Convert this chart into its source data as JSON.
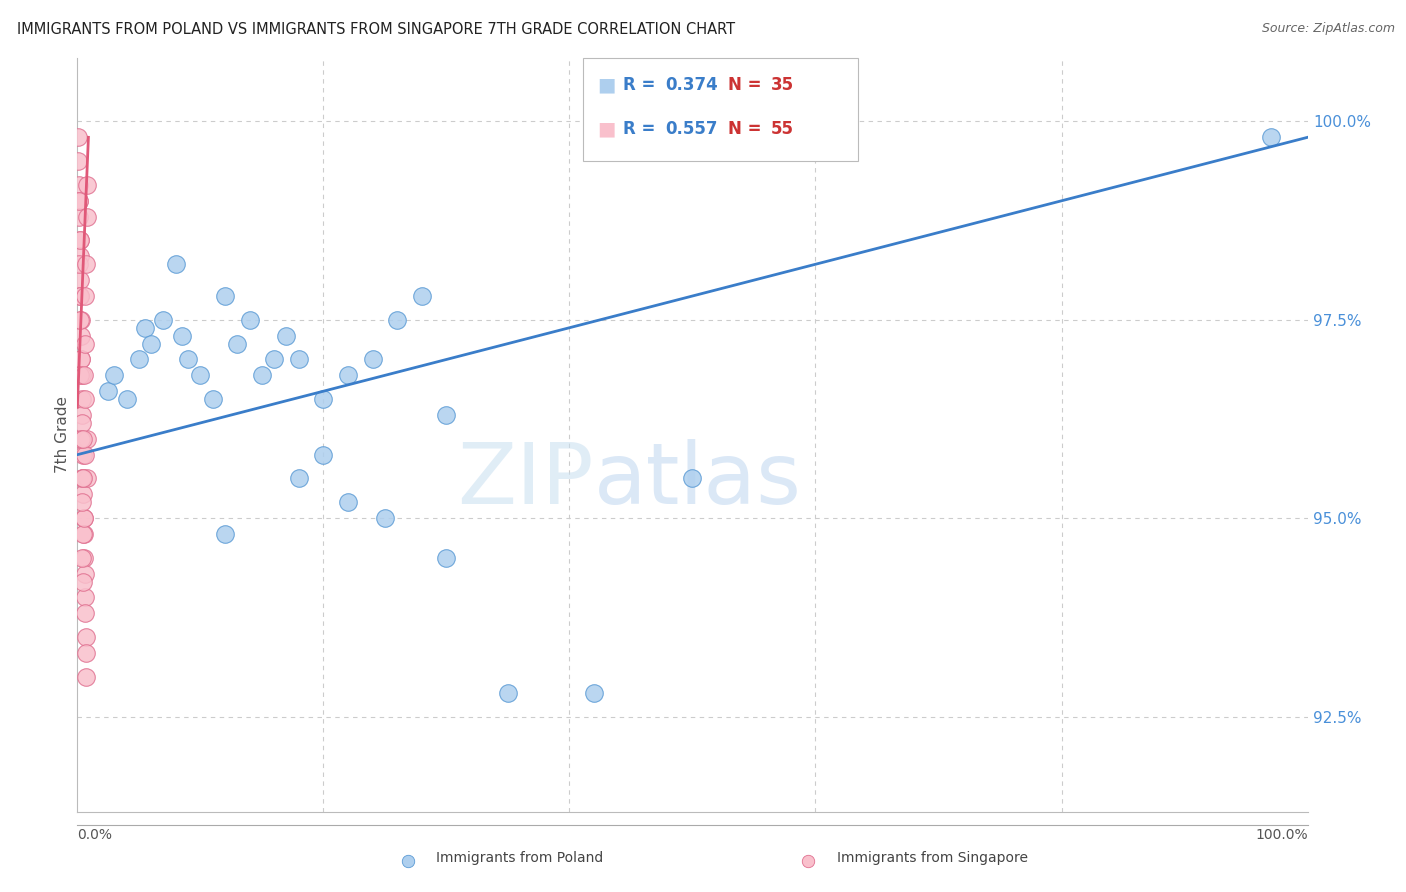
{
  "title": "IMMIGRANTS FROM POLAND VS IMMIGRANTS FROM SINGAPORE 7TH GRADE CORRELATION CHART",
  "source": "Source: ZipAtlas.com",
  "ylabel": "7th Grade",
  "watermark_zip": "ZIP",
  "watermark_atlas": "atlas",
  "poland_R": 0.374,
  "poland_N": 35,
  "singapore_R": 0.557,
  "singapore_N": 55,
  "poland_color": "#aecfee",
  "poland_edge_color": "#5b9bd5",
  "poland_line_color": "#3a7dc9",
  "singapore_color": "#f9c0cc",
  "singapore_edge_color": "#e07090",
  "singapore_line_color": "#e05878",
  "right_yticks": [
    92.5,
    95.0,
    97.5,
    100.0
  ],
  "xlim": [
    0.0,
    100.0
  ],
  "ylim": [
    91.3,
    100.8
  ],
  "grid_color": "#cccccc",
  "title_color": "#222222",
  "right_axis_color": "#4a90d9",
  "legend_R_color": "#3a7dc9",
  "legend_N_color": "#cc3333",
  "poland_x": [
    2.5,
    5.5,
    8.0,
    3.0,
    4.0,
    5.0,
    6.0,
    7.0,
    8.5,
    9.0,
    10.0,
    11.0,
    12.0,
    13.0,
    14.0,
    15.0,
    16.0,
    17.0,
    18.0,
    20.0,
    22.0,
    24.0,
    26.0,
    28.0,
    30.0,
    18.0,
    20.0,
    22.0,
    12.0,
    25.0,
    30.0,
    35.0,
    42.0,
    50.0,
    97.0
  ],
  "poland_y": [
    96.6,
    97.4,
    98.2,
    96.8,
    96.5,
    97.0,
    97.2,
    97.5,
    97.3,
    97.0,
    96.8,
    96.5,
    97.8,
    97.2,
    97.5,
    96.8,
    97.0,
    97.3,
    97.0,
    96.5,
    96.8,
    97.0,
    97.5,
    97.8,
    96.3,
    95.5,
    95.8,
    95.2,
    94.8,
    95.0,
    94.5,
    92.8,
    92.8,
    95.5,
    99.8
  ],
  "singapore_x": [
    0.05,
    0.08,
    0.1,
    0.12,
    0.15,
    0.18,
    0.2,
    0.22,
    0.25,
    0.28,
    0.3,
    0.33,
    0.35,
    0.38,
    0.4,
    0.42,
    0.45,
    0.48,
    0.5,
    0.52,
    0.55,
    0.58,
    0.6,
    0.62,
    0.65,
    0.68,
    0.7,
    0.72,
    0.75,
    0.78,
    0.2,
    0.25,
    0.3,
    0.35,
    0.4,
    0.45,
    0.5,
    0.55,
    0.6,
    0.65,
    0.1,
    0.15,
    0.2,
    0.25,
    0.3,
    0.35,
    0.4,
    0.45,
    0.5,
    0.55,
    0.6,
    0.65,
    0.7,
    0.75,
    0.8
  ],
  "singapore_y": [
    99.8,
    99.5,
    99.2,
    99.0,
    98.8,
    98.5,
    98.3,
    98.0,
    97.8,
    97.5,
    97.3,
    97.0,
    96.8,
    96.5,
    96.3,
    96.0,
    95.8,
    95.5,
    95.3,
    95.0,
    94.8,
    94.5,
    94.3,
    94.0,
    93.8,
    93.5,
    93.3,
    93.0,
    96.0,
    95.5,
    98.5,
    97.8,
    97.0,
    96.2,
    95.5,
    94.8,
    94.2,
    95.0,
    95.8,
    96.5,
    99.0,
    98.2,
    97.5,
    96.8,
    96.0,
    95.2,
    94.5,
    95.5,
    96.0,
    96.8,
    97.2,
    97.8,
    98.2,
    98.8,
    99.2
  ],
  "poland_trend_x": [
    0.0,
    100.0
  ],
  "poland_trend_y": [
    95.8,
    99.8
  ],
  "singapore_trend_x": [
    0.0,
    0.9
  ],
  "singapore_trend_y": [
    96.4,
    99.8
  ]
}
